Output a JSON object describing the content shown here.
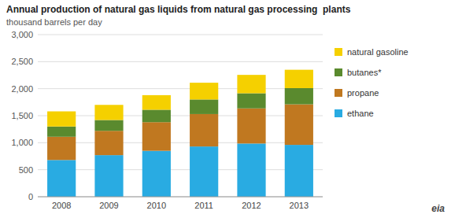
{
  "chart_data": {
    "type": "bar",
    "stacked": true,
    "title": "Annual production of natural gas liquids from natural gas processing  plants",
    "subtitle": "thousand barrels per day",
    "annotations": [
      "eia"
    ],
    "categories": [
      "2008",
      "2009",
      "2010",
      "2011",
      "2012",
      "2013"
    ],
    "series": [
      {
        "name": "ethane",
        "color": "#29abe2",
        "values": [
          680,
          770,
          850,
          930,
          985,
          960
        ]
      },
      {
        "name": "propane",
        "color": "#c07820",
        "values": [
          430,
          450,
          530,
          600,
          650,
          750
        ]
      },
      {
        "name": "butanes*",
        "color": "#5a8a2e",
        "values": [
          190,
          200,
          230,
          270,
          280,
          300
        ]
      },
      {
        "name": "natural gasoline",
        "color": "#f5d000",
        "values": [
          280,
          280,
          270,
          310,
          340,
          340
        ]
      }
    ],
    "ylim": [
      0,
      3000
    ],
    "yticks": [
      0,
      500,
      {
        "value": 1000,
        "label": "1,000"
      },
      {
        "value": 1500,
        "label": "1,500"
      },
      {
        "value": 2000,
        "label": "2,000"
      },
      {
        "value": 2500,
        "label": "2,500"
      },
      {
        "value": 3000,
        "label": "3,000"
      }
    ],
    "grid": true,
    "legend": "right"
  }
}
